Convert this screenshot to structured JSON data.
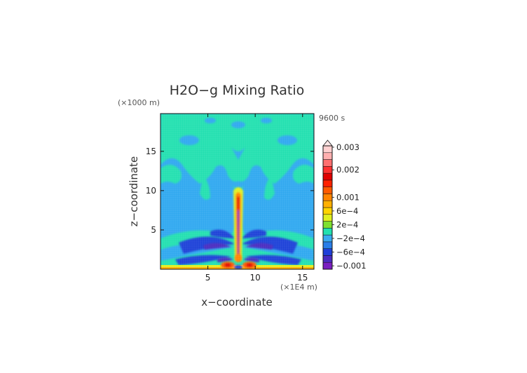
{
  "chart_data": {
    "type": "heatmap",
    "title": "H2O−g Mixing Ratio",
    "xlabel": "x−coordinate",
    "ylabel": "z−coordinate",
    "x_unit": "(×1E4 m)",
    "y_unit": "(×1000 m)",
    "time_label": "9600 s",
    "xlim": [
      0,
      16.2
    ],
    "ylim": [
      0,
      19.8
    ],
    "x_ticks": [
      5,
      10,
      15
    ],
    "x_tick_labels": [
      "5",
      "10",
      "15"
    ],
    "y_ticks": [
      5,
      10,
      15
    ],
    "y_tick_labels": [
      "5",
      "10",
      "15"
    ],
    "colorbar": {
      "ticks": [
        "−0.001",
        "−6e−4",
        "−2e−4",
        "2e−4",
        "6e−4",
        "0.001",
        "0.002",
        "0.003"
      ],
      "colors": [
        "#7a1fc0",
        "#4a2bc0",
        "#1f3fd8",
        "#2a7ee8",
        "#3aaaf0",
        "#22e0b0",
        "#7ee030",
        "#e0f020",
        "#ffd400",
        "#ffb000",
        "#ff8400",
        "#ff5a00",
        "#ff2200",
        "#e00000",
        "#ff3030",
        "#ff7070",
        "#ffb0b0",
        "#ffd0d0"
      ],
      "extend": "max"
    }
  }
}
